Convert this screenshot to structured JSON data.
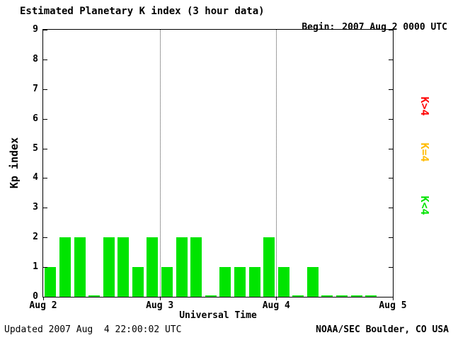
{
  "chart_data": {
    "type": "bar",
    "title": "Estimated Planetary K index (3 hour data)",
    "begin_label": "Begin:",
    "begin_value": "2007 Aug 2 0000 UTC",
    "xlabel": "Universal Time",
    "ylabel": "Kp index",
    "ylim": [
      0,
      9
    ],
    "y_ticks": [
      0,
      1,
      2,
      3,
      4,
      5,
      6,
      7,
      8,
      9
    ],
    "x_ticks": [
      "Aug 2",
      "Aug 3",
      "Aug 4",
      "Aug 5"
    ],
    "hours_per_bar": 3,
    "x_range_hours": 72,
    "grid_on_day_boundaries": true,
    "bar_color": "#00e400",
    "values": [
      1,
      2,
      2,
      0,
      2,
      2,
      1,
      2,
      1,
      2,
      2,
      0,
      1,
      1,
      1,
      2,
      1,
      0,
      1,
      0,
      0,
      0,
      0
    ],
    "values_note": "Kp per 3-hour period starting 2007 Aug 2 0000 UTC; zero values drawn as slivers",
    "legend": [
      {
        "label": "K>4",
        "color": "#ff0000"
      },
      {
        "label": "K=4",
        "color": "#ffbb00"
      },
      {
        "label": "K<4",
        "color": "#00e400"
      }
    ],
    "footer_left": "Updated 2007 Aug  4 22:00:02 UTC",
    "footer_right": "NOAA/SEC Boulder, CO USA"
  }
}
